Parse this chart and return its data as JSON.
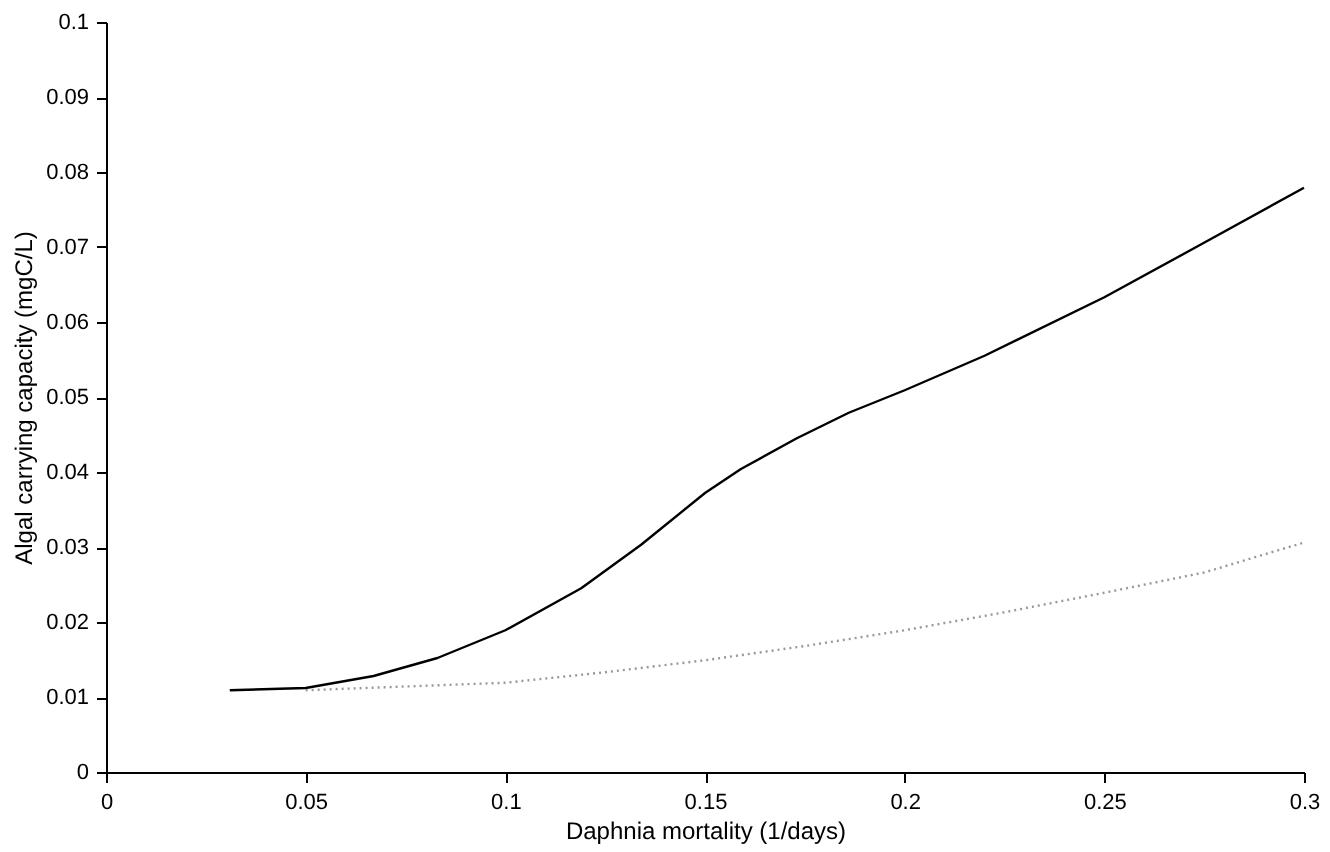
{
  "chart_data": {
    "type": "line",
    "xlabel": "Daphnia mortality (1/days)",
    "ylabel": "Algal carrying capacity (mgC/L)",
    "xlim": [
      0,
      0.3
    ],
    "xticks": [
      0,
      0.05,
      0.1,
      0.15,
      0.2,
      0.25,
      0.3
    ],
    "ylim": [
      0,
      0.1
    ],
    "yticks": [
      0,
      0.01,
      0.02,
      0.03,
      0.04,
      0.05,
      0.06,
      0.07,
      0.08,
      0.09,
      0.1
    ],
    "grid": false,
    "marker": "none",
    "series": [
      {
        "color": "#000000",
        "line_style": "solid",
        "x": [
          0.031,
          0.05,
          0.067,
          0.083,
          0.1,
          0.119,
          0.134,
          0.15,
          0.159,
          0.173,
          0.186,
          0.2,
          0.22,
          0.25,
          0.272,
          0.3
        ],
        "values": [
          0.0109,
          0.0112,
          0.0128,
          0.0152,
          0.0189,
          0.0245,
          0.0303,
          0.0372,
          0.0404,
          0.0445,
          0.0479,
          0.0509,
          0.0555,
          0.0633,
          0.0697,
          0.0779
        ]
      },
      {
        "color": "#999999",
        "line_style": "dotted",
        "x": [
          0.05,
          0.1,
          0.125,
          0.15,
          0.175,
          0.2,
          0.225,
          0.25,
          0.275,
          0.3
        ],
        "values": [
          0.0109,
          0.0119,
          0.0133,
          0.0149,
          0.0168,
          0.0189,
          0.0213,
          0.0239,
          0.0266,
          0.0306
        ]
      }
    ]
  }
}
